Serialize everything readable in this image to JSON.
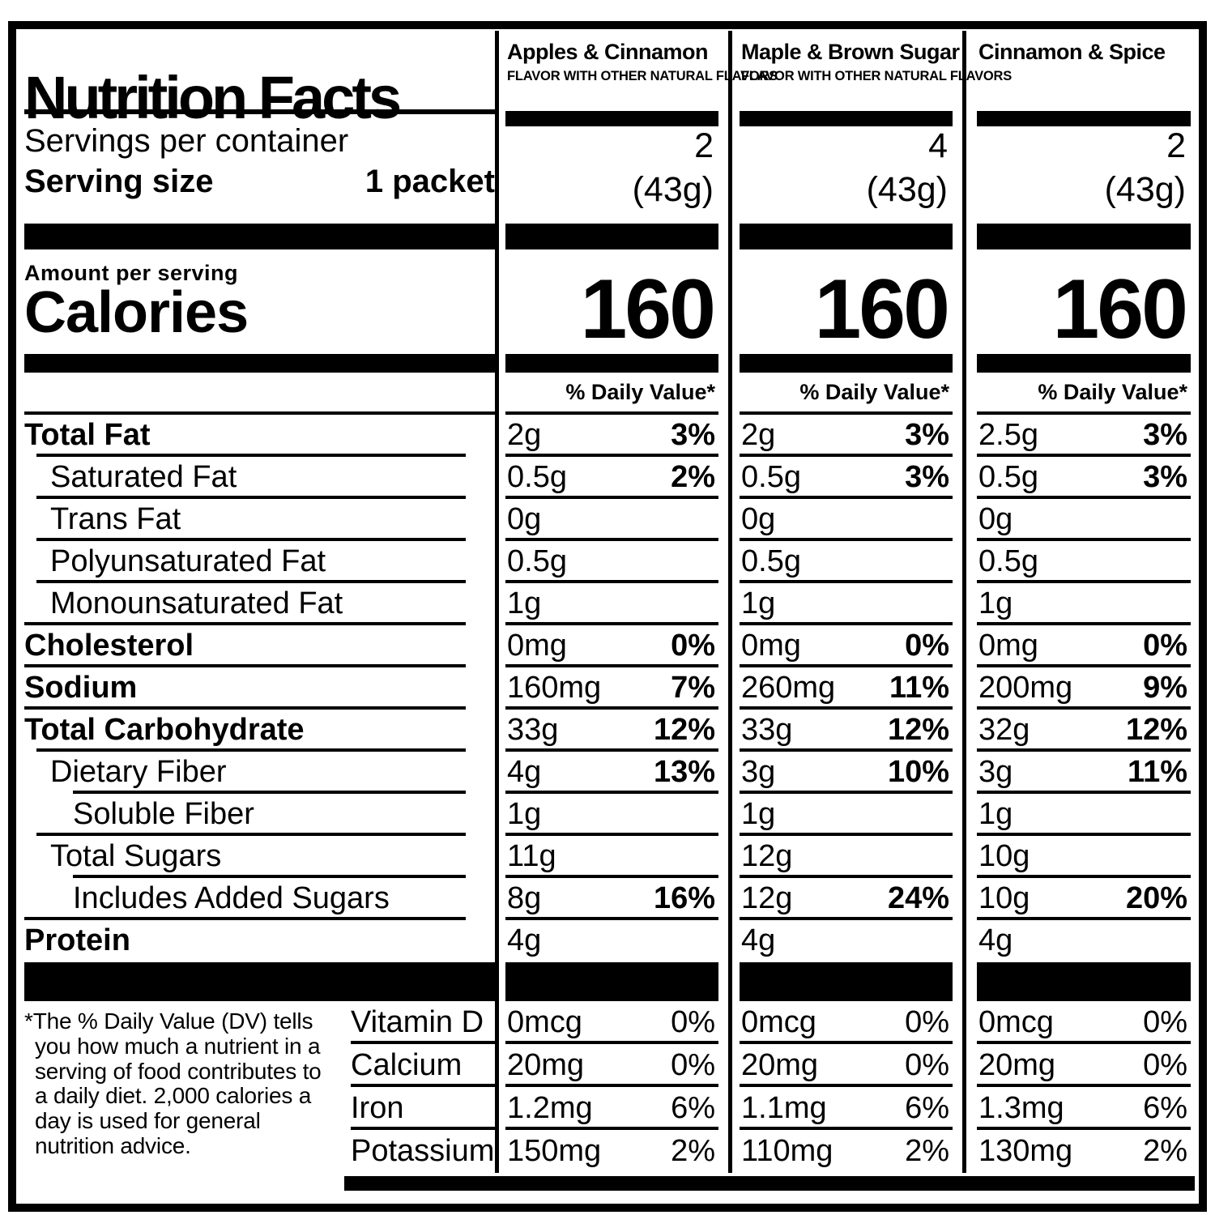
{
  "label": {
    "title": "Nutrition Facts",
    "servings_per_container": "Servings per container",
    "serving_size_label": "Serving size",
    "serving_size_value": "1 packet",
    "amount_per_serving": "Amount per serving",
    "calories_label": "Calories",
    "dv_header": "% Daily Value*",
    "footnote": "*The % Daily Value (DV) tells you how much a nutrient in a serving of food contributes to a daily diet. 2,000 calories a day is used for general nutrition advice."
  },
  "colors": {
    "ink": "#000000",
    "paper": "#ffffff"
  },
  "flavors": [
    {
      "name": "Apples & Cinnamon",
      "subtitle": "FLAVOR WITH OTHER NATURAL FLAVORS",
      "servings": "2",
      "weight": "(43g)",
      "calories": "160"
    },
    {
      "name": "Maple & Brown Sugar",
      "subtitle": "FLAVOR WITH OTHER NATURAL FLAVORS",
      "servings": "4",
      "weight": "(43g)",
      "calories": "160"
    },
    {
      "name": "Cinnamon & Spice",
      "subtitle": "",
      "servings": "2",
      "weight": "(43g)",
      "calories": "160"
    }
  ],
  "rows": [
    {
      "label": "Total Fat",
      "cells": [
        {
          "amount": "2g",
          "dv": "3%"
        },
        {
          "amount": "2g",
          "dv": "3%"
        },
        {
          "amount": "2.5g",
          "dv": "3%"
        }
      ]
    },
    {
      "label": "Saturated Fat",
      "cells": [
        {
          "amount": "0.5g",
          "dv": "2%"
        },
        {
          "amount": "0.5g",
          "dv": "3%"
        },
        {
          "amount": "0.5g",
          "dv": "3%"
        }
      ]
    },
    {
      "label": "Trans Fat",
      "cells": [
        {
          "amount": "0g",
          "dv": ""
        },
        {
          "amount": "0g",
          "dv": ""
        },
        {
          "amount": "0g",
          "dv": ""
        }
      ]
    },
    {
      "label": "Polyunsaturated Fat",
      "cells": [
        {
          "amount": "0.5g",
          "dv": ""
        },
        {
          "amount": "0.5g",
          "dv": ""
        },
        {
          "amount": "0.5g",
          "dv": ""
        }
      ]
    },
    {
      "label": "Monounsaturated Fat",
      "cells": [
        {
          "amount": "1g",
          "dv": ""
        },
        {
          "amount": "1g",
          "dv": ""
        },
        {
          "amount": "1g",
          "dv": ""
        }
      ]
    },
    {
      "label": "Cholesterol",
      "cells": [
        {
          "amount": "0mg",
          "dv": "0%"
        },
        {
          "amount": "0mg",
          "dv": "0%"
        },
        {
          "amount": "0mg",
          "dv": "0%"
        }
      ]
    },
    {
      "label": "Sodium",
      "cells": [
        {
          "amount": "160mg",
          "dv": "7%"
        },
        {
          "amount": "260mg",
          "dv": "11%"
        },
        {
          "amount": "200mg",
          "dv": "9%"
        }
      ]
    },
    {
      "label": "Total Carbohydrate",
      "cells": [
        {
          "amount": "33g",
          "dv": "12%"
        },
        {
          "amount": "33g",
          "dv": "12%"
        },
        {
          "amount": "32g",
          "dv": "12%"
        }
      ]
    },
    {
      "label": "Dietary Fiber",
      "cells": [
        {
          "amount": "4g",
          "dv": "13%"
        },
        {
          "amount": "3g",
          "dv": "10%"
        },
        {
          "amount": "3g",
          "dv": "11%"
        }
      ]
    },
    {
      "label": "Soluble Fiber",
      "cells": [
        {
          "amount": "1g",
          "dv": ""
        },
        {
          "amount": "1g",
          "dv": ""
        },
        {
          "amount": "1g",
          "dv": ""
        }
      ]
    },
    {
      "label": "Total Sugars",
      "cells": [
        {
          "amount": "11g",
          "dv": ""
        },
        {
          "amount": "12g",
          "dv": ""
        },
        {
          "amount": "10g",
          "dv": ""
        }
      ]
    },
    {
      "label": "Includes Added Sugars",
      "cells": [
        {
          "amount": "8g",
          "dv": "16%"
        },
        {
          "amount": "12g",
          "dv": "24%"
        },
        {
          "amount": "10g",
          "dv": "20%"
        }
      ]
    },
    {
      "label": "Protein",
      "cells": [
        {
          "amount": "4g",
          "dv": ""
        },
        {
          "amount": "4g",
          "dv": ""
        },
        {
          "amount": "4g",
          "dv": ""
        }
      ]
    }
  ],
  "vitamins": [
    {
      "label": "Vitamin D",
      "cells": [
        {
          "amount": "0mcg",
          "dv": "0%"
        },
        {
          "amount": "0mcg",
          "dv": "0%"
        },
        {
          "amount": "0mcg",
          "dv": "0%"
        }
      ]
    },
    {
      "label": "Calcium",
      "cells": [
        {
          "amount": "20mg",
          "dv": "0%"
        },
        {
          "amount": "20mg",
          "dv": "0%"
        },
        {
          "amount": "20mg",
          "dv": "0%"
        }
      ]
    },
    {
      "label": "Iron",
      "cells": [
        {
          "amount": "1.2mg",
          "dv": "6%"
        },
        {
          "amount": "1.1mg",
          "dv": "6%"
        },
        {
          "amount": "1.3mg",
          "dv": "6%"
        }
      ]
    },
    {
      "label": "Potassium",
      "cells": [
        {
          "amount": "150mg",
          "dv": "2%"
        },
        {
          "amount": "110mg",
          "dv": "2%"
        },
        {
          "amount": "130mg",
          "dv": "2%"
        }
      ]
    }
  ]
}
